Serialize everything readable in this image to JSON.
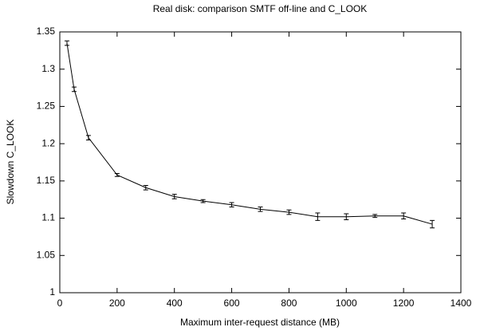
{
  "chart_data": {
    "type": "line",
    "title": "Real disk: comparison SMTF off-line and C_LOOK",
    "x_label": "Maximum inter-request distance (MB)",
    "y_label": "Slowdown C_LOOK",
    "x": [
      25,
      50,
      100,
      200,
      300,
      400,
      500,
      600,
      700,
      800,
      900,
      1000,
      1100,
      1200,
      1300
    ],
    "values": [
      1.335,
      1.273,
      1.208,
      1.158,
      1.141,
      1.129,
      1.123,
      1.118,
      1.112,
      1.108,
      1.102,
      1.102,
      1.103,
      1.103,
      1.092
    ],
    "errors": [
      0.003,
      0.003,
      0.003,
      0.002,
      0.003,
      0.003,
      0.002,
      0.003,
      0.003,
      0.003,
      0.005,
      0.004,
      0.002,
      0.004,
      0.005
    ],
    "color": "#000000",
    "xlim": [
      0,
      1400
    ],
    "xticks": [
      0,
      200,
      400,
      600,
      800,
      1000,
      1200,
      1400
    ],
    "ylim": [
      1,
      1.35
    ],
    "yticks": [
      1,
      1.05,
      1.1,
      1.15,
      1.2,
      1.25,
      1.3,
      1.35
    ],
    "grid": false
  }
}
